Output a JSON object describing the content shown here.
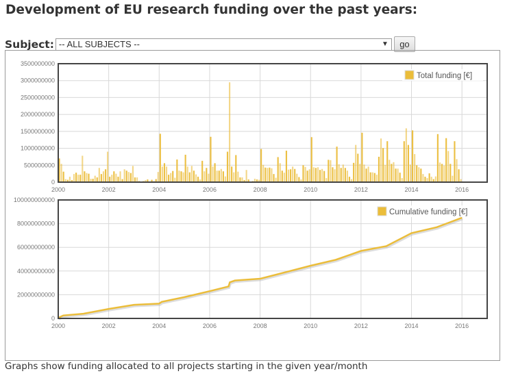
{
  "page": {
    "title": "Development of EU research funding over the past years:",
    "caption": "Graphs show funding allocated to all projects starting in the given year/month"
  },
  "form": {
    "subject_label": "Subject:",
    "subject_value": "-- ALL SUBJECTS --",
    "go_label": "go"
  },
  "colors": {
    "series": "#EBBD3A",
    "frame": "#444444",
    "grid": "#d8d8d8"
  },
  "chart_data": [
    {
      "type": "bar",
      "legend": "Total funding [€]",
      "legend_position": "top-right",
      "grid": true,
      "xlim": [
        2000,
        2017
      ],
      "ylim": [
        0,
        3500000000
      ],
      "x_ticks": [
        "2000",
        "2002",
        "2004",
        "2006",
        "2008",
        "2010",
        "2012",
        "2014",
        "2016"
      ],
      "y_ticks": [
        "0",
        "500000000",
        "1000000000",
        "1500000000",
        "2000000000",
        "2500000000",
        "3000000000",
        "3500000000"
      ],
      "x_start": "2000-01",
      "interval": "month",
      "unit": "millions €",
      "values": [
        700,
        540,
        310,
        90,
        70,
        160,
        60,
        240,
        280,
        220,
        220,
        780,
        320,
        270,
        250,
        100,
        100,
        190,
        140,
        420,
        240,
        320,
        380,
        900,
        160,
        220,
        320,
        250,
        160,
        320,
        90,
        380,
        340,
        300,
        270,
        480,
        140,
        140,
        30,
        10,
        30,
        60,
        80,
        10,
        70,
        30,
        90,
        300,
        1430,
        460,
        560,
        460,
        220,
        270,
        330,
        130,
        670,
        340,
        320,
        290,
        810,
        460,
        290,
        480,
        340,
        230,
        160,
        80,
        630,
        320,
        420,
        250,
        1340,
        460,
        560,
        340,
        340,
        390,
        320,
        170,
        900,
        2950,
        460,
        290,
        800,
        310,
        140,
        140,
        60,
        360,
        80,
        20,
        30,
        100,
        80,
        70,
        980,
        510,
        430,
        420,
        430,
        410,
        240,
        130,
        740,
        560,
        340,
        280,
        930,
        370,
        380,
        460,
        390,
        250,
        150,
        80,
        500,
        450,
        340,
        380,
        1330,
        440,
        420,
        440,
        360,
        390,
        330,
        120,
        660,
        650,
        440,
        380,
        1050,
        530,
        420,
        520,
        420,
        340,
        160,
        90,
        570,
        1100,
        840,
        540,
        1460,
        520,
        400,
        460,
        290,
        290,
        270,
        220,
        750,
        1290,
        1010,
        510,
        1210,
        660,
        540,
        590,
        400,
        400,
        280,
        120,
        1210,
        1590,
        1100,
        520,
        1530,
        830,
        500,
        440,
        400,
        240,
        160,
        120,
        260,
        160,
        90,
        170,
        1420,
        580,
        540,
        490,
        1300,
        920,
        540,
        190,
        1210,
        680,
        380,
        90
      ]
    },
    {
      "type": "line",
      "legend": "Cumulative funding [€]",
      "legend_position": "top-right",
      "grid": true,
      "xlim": [
        2000,
        2017
      ],
      "ylim": [
        0,
        100000000000
      ],
      "x_ticks": [
        "2000",
        "2002",
        "2004",
        "2006",
        "2008",
        "2010",
        "2012",
        "2014",
        "2016"
      ],
      "y_ticks": [
        "0",
        "20000000000",
        "40000000000",
        "60000000000",
        "80000000000",
        "100000000000"
      ],
      "unit": "billions €",
      "x": [
        2000,
        2000.2,
        2001,
        2002,
        2003,
        2004,
        2004.1,
        2005,
        2006,
        2006.75,
        2006.8,
        2007,
        2008,
        2009,
        2010,
        2011,
        2012,
        2013,
        2014,
        2015,
        2015.5,
        2016
      ],
      "y": [
        0.5,
        2.5,
        4,
        8,
        11.5,
        12.5,
        14,
        18,
        23,
        27,
        30.5,
        32,
        33.5,
        39,
        44.5,
        49.5,
        57,
        61,
        72,
        77,
        81,
        85
      ]
    }
  ]
}
